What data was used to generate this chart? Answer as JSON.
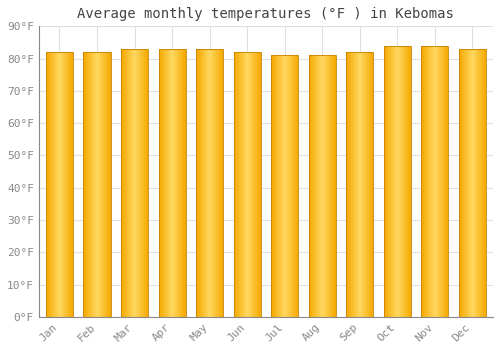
{
  "title": "Average monthly temperatures (°F ) in Kebomas",
  "months": [
    "Jan",
    "Feb",
    "Mar",
    "Apr",
    "May",
    "Jun",
    "Jul",
    "Aug",
    "Sep",
    "Oct",
    "Nov",
    "Dec"
  ],
  "values": [
    82,
    82,
    83,
    83,
    83,
    82,
    81,
    81,
    82,
    84,
    84,
    83
  ],
  "ylim": [
    0,
    90
  ],
  "yticks": [
    0,
    10,
    20,
    30,
    40,
    50,
    60,
    70,
    80,
    90
  ],
  "ytick_labels": [
    "0°F",
    "10°F",
    "20°F",
    "30°F",
    "40°F",
    "50°F",
    "60°F",
    "70°F",
    "80°F",
    "90°F"
  ],
  "bar_color_edge": "#F5A800",
  "bar_color_center": "#FFD050",
  "background_color": "#ffffff",
  "grid_color": "#e0e0e0",
  "title_fontsize": 10,
  "tick_fontsize": 8,
  "title_color": "#444444",
  "tick_color": "#888888",
  "bar_width": 0.72,
  "figsize": [
    5.0,
    3.5
  ],
  "dpi": 100
}
